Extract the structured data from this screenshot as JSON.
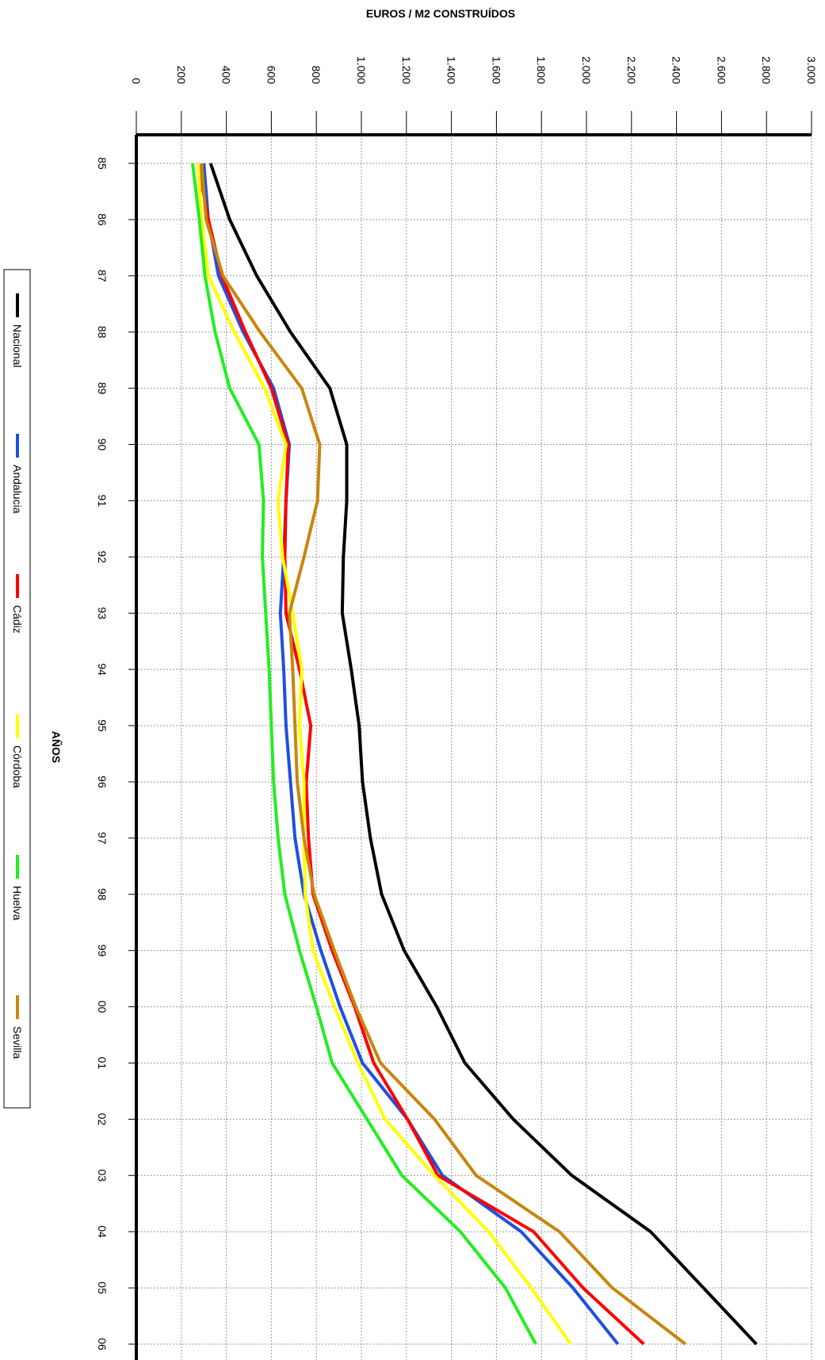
{
  "chart_data": {
    "type": "line",
    "title": "EUROS / M2 CONSTRUÍDOS",
    "x_label": "AÑOS",
    "categories": [
      "85",
      "86",
      "87",
      "88",
      "89",
      "90",
      "91",
      "92",
      "93",
      "94",
      "95",
      "96",
      "97",
      "98",
      "99",
      "00",
      "01",
      "02",
      "03",
      "04",
      "05",
      "06"
    ],
    "ylim": [
      0,
      3000
    ],
    "yticks": [
      0,
      200,
      400,
      600,
      800,
      {
        "value": 1000,
        "label": "1.000"
      },
      {
        "value": 1200,
        "label": "1.200"
      },
      {
        "value": 1400,
        "label": "1.400"
      },
      {
        "value": 1600,
        "label": "1.600"
      },
      {
        "value": 1800,
        "label": "1.800"
      },
      {
        "value": 2000,
        "label": "2.000"
      },
      {
        "value": 2200,
        "label": "2.200"
      },
      {
        "value": 2400,
        "label": "2.400"
      },
      {
        "value": 2600,
        "label": "2.600"
      },
      {
        "value": 2800,
        "label": "2.800"
      },
      {
        "value": 3000,
        "label": "3.000"
      }
    ],
    "grid": true,
    "series": [
      {
        "name": "Nacional",
        "color": "#000000",
        "values": [
          330,
          415,
          535,
          685,
          860,
          935,
          935,
          920,
          915,
          955,
          990,
          1005,
          1040,
          1090,
          1190,
          1335,
          1460,
          1675,
          1935,
          2285,
          2520,
          2755
        ]
      },
      {
        "name": "Andalucia",
        "color": "#1f4fe0",
        "values": [
          300,
          320,
          365,
          475,
          610,
          680,
          665,
          655,
          640,
          655,
          665,
          685,
          705,
          745,
          820,
          905,
          1005,
          1205,
          1360,
          1710,
          1940,
          2140
        ]
      },
      {
        "name": "Cádiz",
        "color": "#ff0000",
        "values": [
          275,
          320,
          380,
          485,
          600,
          675,
          665,
          660,
          665,
          725,
          775,
          755,
          765,
          785,
          870,
          970,
          1055,
          1205,
          1340,
          1765,
          1985,
          2255
        ]
      },
      {
        "name": "Córdoba",
        "color": "#ffff00",
        "values": [
          275,
          290,
          320,
          435,
          570,
          665,
          630,
          650,
          695,
          735,
          725,
          745,
          745,
          750,
          785,
          880,
          985,
          1105,
          1325,
          1565,
          1755,
          1930
        ]
      },
      {
        "name": "Huelva",
        "color": "#22ee22",
        "values": [
          250,
          280,
          305,
          350,
          415,
          545,
          565,
          560,
          575,
          590,
          600,
          610,
          630,
          660,
          725,
          800,
          870,
          1025,
          1180,
          1440,
          1640,
          1775
        ]
      },
      {
        "name": "Sevilla",
        "color": "#c8860d",
        "values": [
          290,
          310,
          385,
          550,
          735,
          815,
          805,
          745,
          680,
          695,
          705,
          715,
          745,
          790,
          880,
          975,
          1085,
          1325,
          1510,
          1880,
          2115,
          2440
        ]
      }
    ]
  }
}
